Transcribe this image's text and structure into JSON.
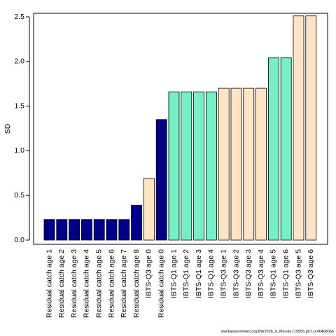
{
  "chart_data": {
    "type": "bar",
    "ylabel": "SD",
    "ylim": [
      0,
      2.5
    ],
    "yticks": [
      "0.0",
      "0.5",
      "1.0",
      "1.5",
      "2.0",
      "2.5"
    ],
    "categories": [
      "Residual catch age 1",
      "Residual catch age 2",
      "Residual catch age 3",
      "Residual catch age 4",
      "Residual catch age 5",
      "Residual catch age 6",
      "Residual catch age 7",
      "Residual catch age 8",
      "IBTS-Q3 age 0",
      "Residual catch age 0",
      "IBTS-Q1 age 1",
      "IBTS-Q1 age 2",
      "IBTS-Q1 age 3",
      "IBTS-Q1 age 4",
      "IBTS-Q3 age 1",
      "IBTS-Q3 age 2",
      "IBTS-Q3 age 3",
      "IBTS-Q3 age 4",
      "IBTS-Q1 age 5",
      "IBTS-Q1 age 6",
      "IBTS-Q3 age 5",
      "IBTS-Q3 age 6"
    ],
    "values": [
      0.23,
      0.23,
      0.23,
      0.23,
      0.23,
      0.23,
      0.23,
      0.39,
      0.69,
      1.35,
      1.66,
      1.66,
      1.66,
      1.66,
      1.7,
      1.7,
      1.7,
      1.7,
      2.04,
      2.04,
      2.51,
      2.51
    ],
    "bar_colors": [
      "#00008b",
      "#00008b",
      "#00008b",
      "#00008b",
      "#00008b",
      "#00008b",
      "#00008b",
      "#00008b",
      "#ffe4c4",
      "#00008b",
      "#76eec6",
      "#76eec6",
      "#76eec6",
      "#76eec6",
      "#ffe4c4",
      "#ffe4c4",
      "#ffe4c4",
      "#ffe4c4",
      "#76eec6",
      "#76eec6",
      "#ffe4c4",
      "#ffe4c4"
    ],
    "grid": false
  },
  "footer": "stockassessment.org,BW2026_9_Mscale,r19556,git:1cc464b8066"
}
